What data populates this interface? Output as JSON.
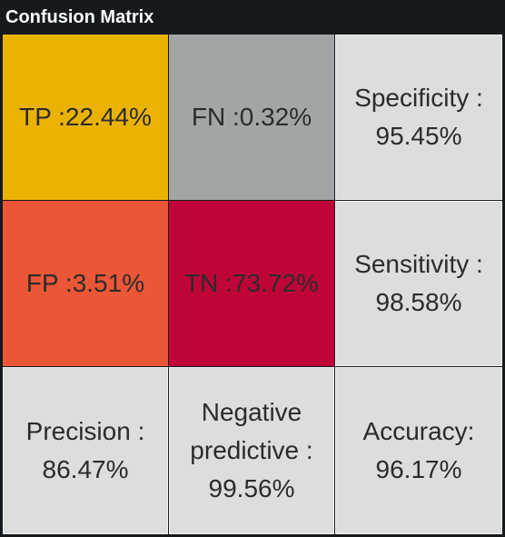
{
  "panel": {
    "title": "Confusion Matrix"
  },
  "matrix": {
    "tp": {
      "label": "TP :22.44%",
      "color": "#ebb301"
    },
    "fn": {
      "label": "FN :0.32%",
      "color": "#a2a5a6"
    },
    "fp": {
      "label": "FP :3.51%",
      "color": "#eb5636"
    },
    "tn": {
      "label": "TN :73.72%",
      "color": "#bf0537"
    }
  },
  "metrics": {
    "specificity": "Specificity :\n95.45%",
    "sensitivity": "Sensitivity :\n98.58%",
    "precision": "Precision :\n86.47%",
    "negative_predictive": "Negative\npredictive :\n99.56%",
    "accuracy": "Accuracy:\n96.17%"
  },
  "colors": {
    "background": "#16191d",
    "metric_cell": "#dcdddd",
    "text": "#2b2b2b",
    "title_text": "#ffffff"
  }
}
